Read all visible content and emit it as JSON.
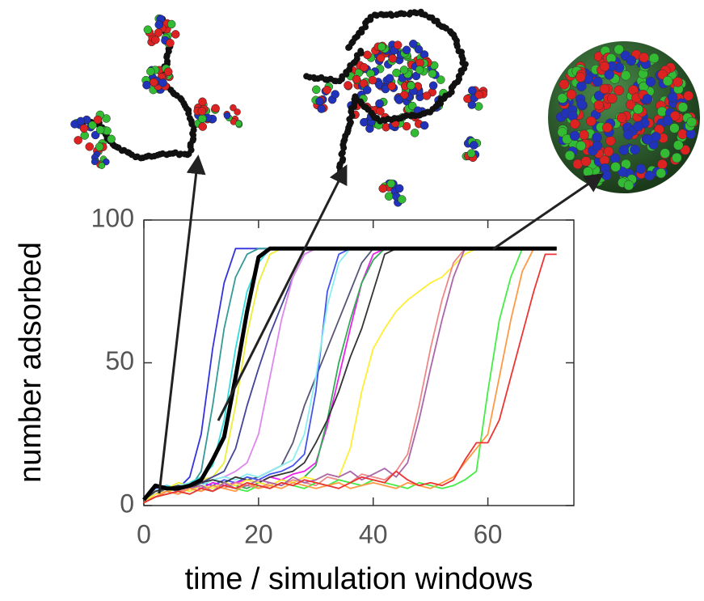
{
  "chart_data": {
    "type": "line",
    "xlabel": "time / simulation windows",
    "ylabel": "number adsorbed",
    "xlim": [
      0,
      75
    ],
    "ylim": [
      0,
      100
    ],
    "xticks": [
      0,
      20,
      40,
      60
    ],
    "yticks": [
      0,
      50,
      100
    ],
    "x": [
      0,
      2,
      4,
      6,
      8,
      10,
      12,
      14,
      16,
      18,
      20,
      22,
      24,
      26,
      28,
      30,
      32,
      34,
      36,
      38,
      40,
      42,
      44,
      46,
      48,
      50,
      52,
      54,
      56,
      58,
      60,
      62,
      64,
      66,
      68,
      70,
      72
    ],
    "series": [
      {
        "color": "#3333dd",
        "values": [
          2,
          6,
          7,
          6,
          10,
          25,
          55,
          78,
          90,
          90,
          90,
          90,
          90,
          90,
          90,
          90,
          90,
          90,
          90,
          90,
          90,
          90,
          90,
          90,
          90,
          90,
          90,
          90,
          90,
          90,
          90,
          90,
          90,
          90,
          90,
          90,
          90
        ]
      },
      {
        "color": "#339999",
        "values": [
          2,
          5,
          6,
          7,
          6,
          12,
          35,
          62,
          80,
          88,
          90,
          90,
          90,
          90,
          90,
          90,
          90,
          90,
          90,
          90,
          90,
          90,
          90,
          90,
          90,
          90,
          90,
          90,
          90,
          90,
          90,
          90,
          90,
          90,
          90,
          90,
          90
        ]
      },
      {
        "color": "#33dddd",
        "values": [
          1,
          5,
          7,
          6,
          8,
          10,
          14,
          30,
          55,
          75,
          85,
          90,
          90,
          90,
          90,
          90,
          90,
          90,
          90,
          90,
          90,
          90,
          90,
          90,
          90,
          90,
          90,
          90,
          90,
          90,
          90,
          90,
          90,
          90,
          90,
          90,
          90
        ]
      },
      {
        "color": "#eeee33",
        "values": [
          2,
          4,
          6,
          8,
          7,
          9,
          10,
          15,
          35,
          60,
          78,
          88,
          90,
          90,
          90,
          90,
          90,
          90,
          90,
          90,
          90,
          90,
          90,
          90,
          90,
          90,
          90,
          90,
          90,
          90,
          90,
          90,
          90,
          90,
          90,
          90,
          90
        ]
      },
      {
        "color": "#444499",
        "values": [
          2,
          5,
          6,
          5,
          7,
          8,
          10,
          12,
          20,
          35,
          48,
          60,
          70,
          80,
          88,
          90,
          90,
          90,
          90,
          90,
          90,
          90,
          90,
          90,
          90,
          90,
          90,
          90,
          90,
          90,
          90,
          90,
          90,
          90,
          90,
          90,
          90
        ]
      },
      {
        "color": "#dd88ee",
        "values": [
          1,
          4,
          5,
          7,
          6,
          8,
          9,
          10,
          12,
          15,
          25,
          45,
          65,
          80,
          88,
          90,
          90,
          90,
          90,
          90,
          90,
          90,
          90,
          90,
          90,
          90,
          90,
          90,
          90,
          90,
          90,
          90,
          90,
          90,
          90,
          90,
          90
        ]
      },
      {
        "color": "#555577",
        "values": [
          1,
          4,
          6,
          5,
          7,
          6,
          8,
          7,
          8,
          9,
          10,
          12,
          14,
          22,
          35,
          45,
          55,
          65,
          75,
          85,
          90,
          90,
          90,
          90,
          90,
          90,
          90,
          90,
          90,
          90,
          90,
          90,
          90,
          90,
          90,
          90,
          90
        ]
      },
      {
        "color": "#4455ee",
        "values": [
          2,
          5,
          6,
          7,
          6,
          8,
          7,
          9,
          8,
          10,
          9,
          11,
          12,
          14,
          18,
          40,
          75,
          88,
          90,
          90,
          90,
          90,
          90,
          90,
          90,
          90,
          90,
          90,
          90,
          90,
          90,
          90,
          90,
          90,
          90,
          90,
          90
        ]
      },
      {
        "color": "#ee22ee",
        "values": [
          1,
          4,
          5,
          6,
          7,
          6,
          8,
          7,
          8,
          9,
          8,
          10,
          9,
          11,
          12,
          15,
          28,
          45,
          62,
          78,
          88,
          90,
          90,
          90,
          90,
          90,
          90,
          90,
          90,
          90,
          90,
          90,
          90,
          90,
          90,
          90,
          90
        ]
      },
      {
        "color": "#33aa55",
        "values": [
          1,
          3,
          5,
          6,
          5,
          7,
          6,
          8,
          7,
          6,
          8,
          7,
          9,
          8,
          10,
          14,
          30,
          50,
          65,
          78,
          86,
          90,
          90,
          90,
          90,
          90,
          90,
          90,
          90,
          90,
          90,
          90,
          90,
          90,
          90,
          90,
          90
        ]
      },
      {
        "color": "#88eeee",
        "values": [
          2,
          5,
          6,
          7,
          8,
          7,
          9,
          10,
          9,
          11,
          10,
          12,
          14,
          16,
          25,
          45,
          70,
          85,
          90,
          90,
          90,
          90,
          90,
          90,
          90,
          90,
          90,
          90,
          90,
          90,
          90,
          90,
          90,
          90,
          90,
          90,
          90
        ]
      },
      {
        "color": "#333333",
        "values": [
          2,
          5,
          6,
          7,
          6,
          8,
          9,
          8,
          10,
          9,
          8,
          10,
          11,
          12,
          15,
          22,
          30,
          40,
          52,
          62,
          75,
          88,
          90,
          90,
          90,
          90,
          90,
          90,
          90,
          90,
          90,
          90,
          90,
          90,
          90,
          90,
          90
        ]
      },
      {
        "color": "#ffee33",
        "values": [
          1,
          4,
          5,
          6,
          5,
          7,
          6,
          8,
          7,
          9,
          8,
          7,
          9,
          8,
          10,
          9,
          11,
          10,
          20,
          40,
          55,
          62,
          68,
          72,
          75,
          78,
          80,
          84,
          88,
          90,
          90,
          90,
          90,
          90,
          90,
          90,
          90
        ]
      },
      {
        "color": "#ee8888",
        "values": [
          1,
          3,
          4,
          5,
          6,
          5,
          7,
          6,
          8,
          7,
          6,
          8,
          7,
          9,
          8,
          7,
          10,
          9,
          8,
          11,
          10,
          9,
          12,
          18,
          35,
          55,
          72,
          85,
          90,
          90,
          90,
          90,
          90,
          90,
          90,
          90,
          90
        ]
      },
      {
        "color": "#aa66aa",
        "values": [
          1,
          3,
          5,
          4,
          6,
          7,
          5,
          8,
          6,
          7,
          9,
          8,
          7,
          10,
          8,
          9,
          11,
          10,
          12,
          9,
          11,
          13,
          10,
          15,
          30,
          48,
          65,
          80,
          90,
          90,
          90,
          90,
          90,
          90,
          90,
          90,
          90
        ]
      },
      {
        "color": "#44ee44",
        "values": [
          1,
          3,
          4,
          5,
          4,
          6,
          5,
          7,
          6,
          5,
          7,
          6,
          8,
          7,
          6,
          8,
          7,
          9,
          8,
          7,
          9,
          8,
          7,
          6,
          8,
          7,
          6,
          7,
          9,
          12,
          40,
          65,
          80,
          90,
          90,
          90,
          90
        ]
      },
      {
        "color": "#ff9944",
        "values": [
          1,
          3,
          5,
          4,
          6,
          5,
          7,
          6,
          5,
          8,
          6,
          7,
          6,
          8,
          7,
          6,
          7,
          8,
          6,
          7,
          8,
          7,
          6,
          8,
          7,
          6,
          8,
          10,
          15,
          20,
          25,
          45,
          65,
          82,
          90,
          90,
          90
        ]
      },
      {
        "color": "#ee3333",
        "values": [
          1,
          3,
          4,
          5,
          4,
          6,
          5,
          7,
          6,
          8,
          7,
          6,
          8,
          7,
          9,
          8,
          7,
          6,
          8,
          10,
          9,
          8,
          12,
          9,
          7,
          8,
          7,
          9,
          16,
          22,
          22,
          30,
          45,
          60,
          75,
          88,
          88
        ]
      },
      {
        "color": "#000000",
        "line_width": 5,
        "values": [
          2,
          7,
          6,
          6,
          7,
          9,
          16,
          24,
          45,
          68,
          87,
          90,
          90,
          90,
          90,
          90,
          90,
          90,
          90,
          90,
          90,
          90,
          90,
          90,
          90,
          90,
          90,
          90,
          90,
          90,
          90,
          90,
          90,
          90,
          90,
          90,
          90
        ]
      }
    ]
  }
}
